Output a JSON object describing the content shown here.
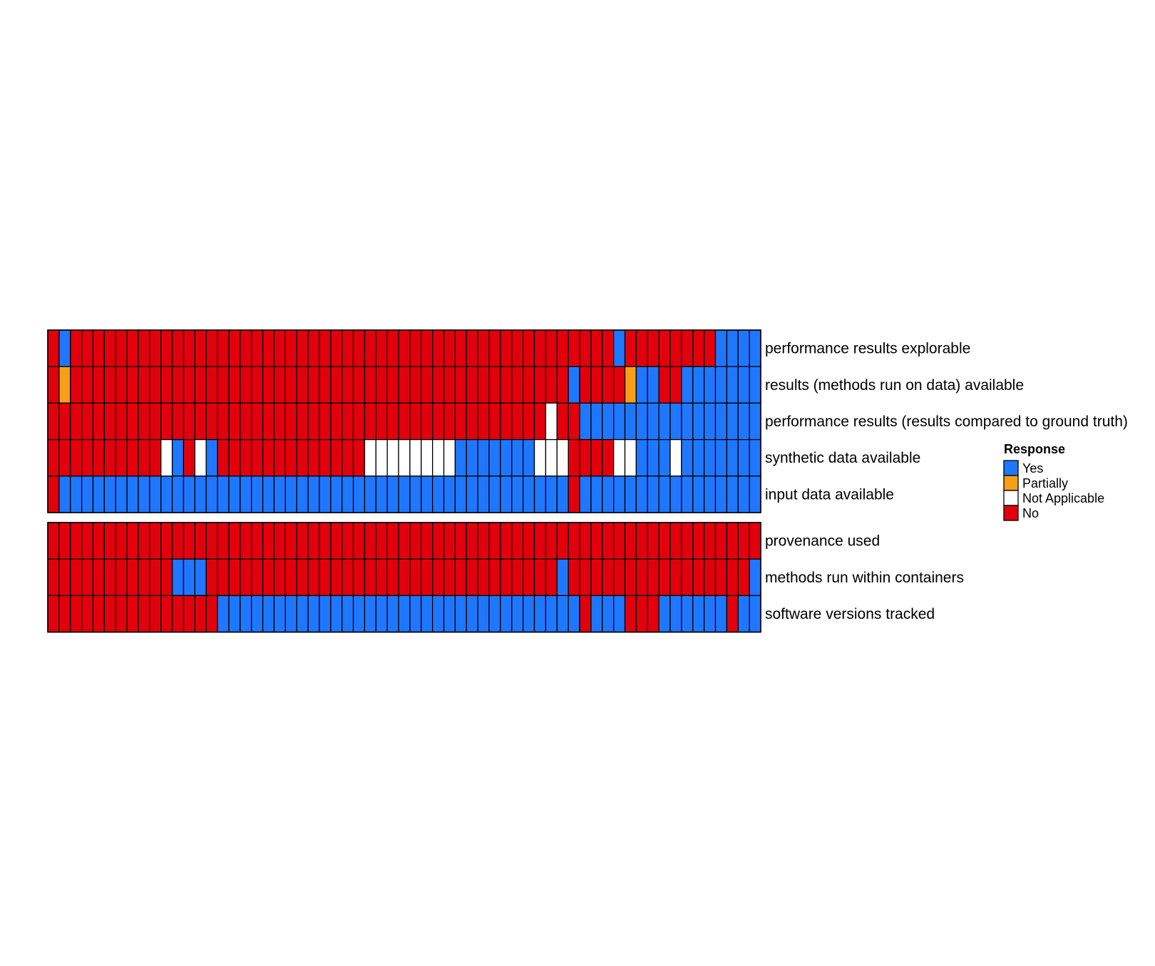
{
  "chart_data": {
    "type": "heatmap",
    "title": "",
    "xlabel": "",
    "ylabel": "",
    "columns": 63,
    "colors": {
      "Y": "#1f77ff",
      "P": "#f5a018",
      "N": "#e2000c",
      "A": "#ffffff",
      "grid": "#000000"
    },
    "legend": {
      "title": "Response",
      "placement": "right",
      "items": [
        {
          "code": "Y",
          "label": "Yes"
        },
        {
          "code": "P",
          "label": "Partially"
        },
        {
          "code": "A",
          "label": "Not Applicable"
        },
        {
          "code": "N",
          "label": "No"
        }
      ]
    },
    "panels": [
      {
        "rows": [
          {
            "label": "performance results explorable",
            "values": "NYNNNNNNNNNNNNNNNNNNNNNNNNNNNNNNNNNNNNNNNNNNNNNNNNYNNNNNNNNYYYY"
          },
          {
            "label": "results (methods run on data) available",
            "values": "NPNNNNNNNNNNNNNNNNNNNNNNNNNNNNNNNNNNNNNNNNNNNNYNNNNPYYNNYYYYYYYN"
          },
          {
            "label": "performance results (results compared to ground truth)",
            "values": "NNNNNNNNNNNNNNNNNNNNNNNNNNNNNNNNNNNNNNNNNNNNANNYYYYYYYYYYYYYYYYY"
          },
          {
            "label": "synthetic data available",
            "values": "NNNNNNNNNNAYNAYNNNNNNNNNNNNNAAAAAAAAYYYYYYYAAANNNNAAYYYAYYYYYYY"
          },
          {
            "label": "input data available",
            "values": "NYYYYYYYYYYYYYYYYYYYYYYYYYYYYYYYYYYYYYYYYYYYYYNYYYYYYYYYYYYYYYY"
          }
        ]
      },
      {
        "rows": [
          {
            "label": "provenance used",
            "values": "NNNNNNNNNNNNNNNNNNNNNNNNNNNNNNNNNNNNNNNNNNNNNNNNNNNNNNNNNNNNNNN"
          },
          {
            "label": "methods run within containers",
            "values": "NNNNNNNNNNNYYYNNNNNNNNNNNNNNNNNNNNNNNNNNNNNNNYNNNNNNNNNNNNNNNNY"
          },
          {
            "label": "software versions tracked",
            "values": "NNNNNNNNNNNNNNNYYYYYYYYYYYYYYYYYYYYYYYYYYYYYYYYNYYYNNNYYYYYYNYYY"
          }
        ]
      }
    ]
  }
}
